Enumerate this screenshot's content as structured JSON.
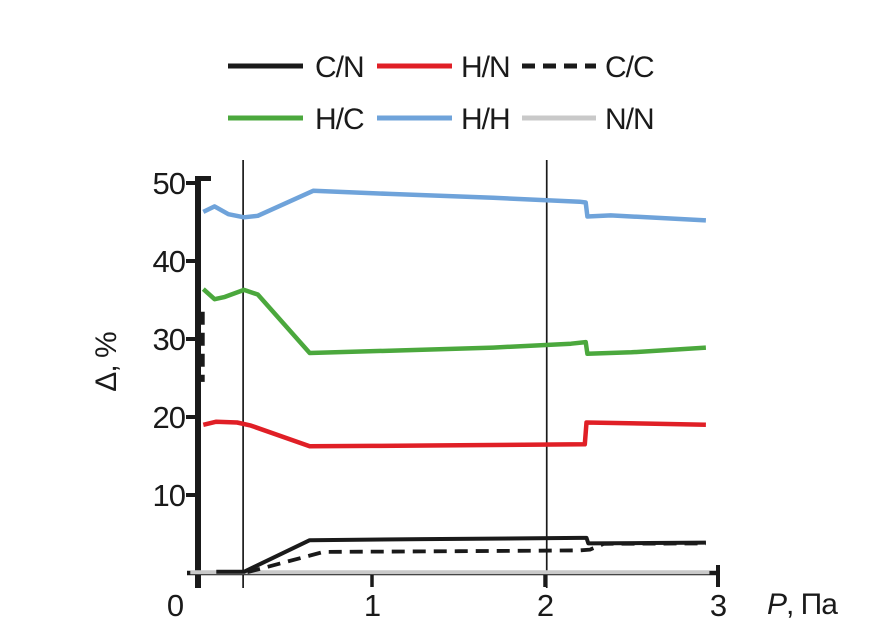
{
  "figure": {
    "background": "#ffffff"
  },
  "chart_data": {
    "type": "line",
    "title": "",
    "xlabel_symbol": "P",
    "xlabel_unit": ", Па",
    "ylabel": "Δ, %",
    "xlim": [
      0,
      3
    ],
    "ylim": [
      0,
      50
    ],
    "xticks": [
      "0",
      "1",
      "2",
      "3"
    ],
    "yticks": [
      "10",
      "20",
      "30",
      "40",
      "50"
    ],
    "grid": false,
    "legend_position": "top-center",
    "axis_color": "#1a1a1a",
    "vertical_markers": [
      0.255,
      2.01
    ],
    "legend": [
      {
        "label": "C/N",
        "color": "#1a1a1a",
        "dash": null
      },
      {
        "label": "H/N",
        "color": "#e01f26",
        "dash": "13 8"
      },
      {
        "label": "C/C",
        "color": "#1a1a1a",
        "dash": "13 8"
      },
      {
        "label": "H/C",
        "color": "#4ba83d",
        "dash": null
      },
      {
        "label": "H/H",
        "color": "#6fa3da",
        "dash": null
      },
      {
        "label": "N/N",
        "color": "#c9c9c9",
        "dash": null
      }
    ],
    "series": [
      {
        "name": "N/N",
        "color": "#c9c9c9",
        "width": 4,
        "dash": null,
        "segments": [
          [
            [
              -0.05,
              0.1
            ],
            [
              2.95,
              0.1
            ]
          ]
        ]
      },
      {
        "name": "H/H",
        "color": "#6fa3da",
        "width": 4.5,
        "dash": null,
        "segments": [
          [
            [
              0.025,
              46.3
            ],
            [
              0.09,
              47.0
            ],
            [
              0.17,
              46.0
            ],
            [
              0.26,
              45.6
            ],
            [
              0.34,
              45.8
            ],
            [
              0.66,
              49.0
            ],
            [
              1.1,
              48.6
            ],
            [
              1.7,
              48.1
            ],
            [
              2.2,
              47.6
            ],
            [
              2.235,
              47.5
            ],
            [
              2.245,
              45.7
            ],
            [
              2.38,
              45.85
            ],
            [
              2.93,
              45.2
            ]
          ]
        ]
      },
      {
        "name": "H/C",
        "color": "#4ba83d",
        "width": 4.5,
        "dash": null,
        "segments": [
          [
            [
              0.025,
              36.4
            ],
            [
              0.09,
              35.1
            ],
            [
              0.15,
              35.4
            ],
            [
              0.26,
              36.3
            ],
            [
              0.34,
              35.7
            ],
            [
              0.64,
              28.2
            ],
            [
              1.1,
              28.5
            ],
            [
              1.7,
              28.9
            ],
            [
              2.15,
              29.4
            ],
            [
              2.235,
              29.6
            ],
            [
              2.245,
              28.1
            ],
            [
              2.5,
              28.3
            ],
            [
              2.93,
              28.9
            ]
          ]
        ]
      },
      {
        "name": "H/N",
        "color": "#e01f26",
        "width": 4.5,
        "dash": null,
        "segments": [
          [
            [
              0.025,
              19.0
            ],
            [
              0.1,
              19.4
            ],
            [
              0.22,
              19.3
            ],
            [
              0.3,
              18.9
            ],
            [
              0.64,
              16.25
            ],
            [
              1.0,
              16.3
            ],
            [
              1.6,
              16.4
            ],
            [
              2.23,
              16.5
            ],
            [
              2.24,
              19.3
            ],
            [
              2.6,
              19.15
            ],
            [
              2.93,
              19.0
            ]
          ]
        ]
      },
      {
        "name": "C/N",
        "color": "#1a1a1a",
        "width": 4,
        "dash": null,
        "segments": [
          [
            [
              0.1,
              0.15
            ],
            [
              0.26,
              0.15
            ],
            [
              0.64,
              4.2
            ],
            [
              1.3,
              4.35
            ],
            [
              2.2,
              4.5
            ],
            [
              2.24,
              4.5
            ],
            [
              2.25,
              3.8
            ],
            [
              2.6,
              3.85
            ],
            [
              2.93,
              3.9
            ]
          ]
        ]
      },
      {
        "name": "C/C",
        "color": "#1a1a1a",
        "width": 3.8,
        "dash": "13 8",
        "segments": [
          [
            [
              0.022,
              33.5
            ],
            [
              0.022,
              24.5
            ]
          ],
          [
            [
              0.28,
              0.1
            ],
            [
              0.72,
              2.7
            ],
            [
              1.5,
              2.8
            ],
            [
              2.2,
              2.9
            ],
            [
              2.26,
              3.0
            ],
            [
              2.34,
              3.75
            ],
            [
              2.93,
              3.8
            ]
          ]
        ]
      }
    ]
  }
}
